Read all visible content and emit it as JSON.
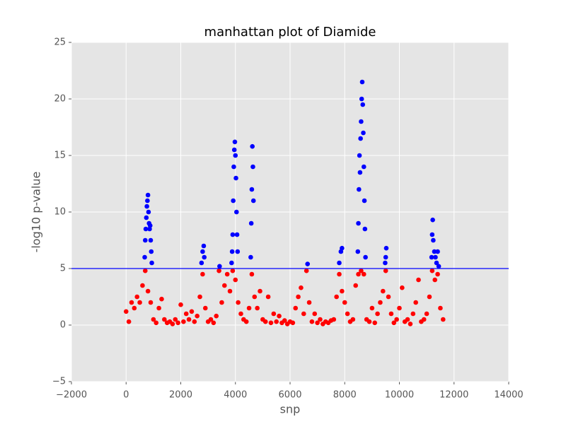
{
  "chart_data": {
    "type": "scatter",
    "title": "manhattan plot of Diamide",
    "x_label": "snp",
    "y_label": "-log10 p-value",
    "xlim": [
      -2000,
      14000
    ],
    "ylim": [
      -5,
      25
    ],
    "xticks": [
      {
        "value": -2000,
        "label": "−2000"
      },
      0,
      2000,
      4000,
      6000,
      8000,
      10000,
      12000,
      14000
    ],
    "yticks": [
      {
        "value": -5,
        "label": "−5"
      },
      0,
      5,
      10,
      15,
      20,
      25
    ],
    "grid": true,
    "threshold": {
      "value": 5,
      "color": "#0000ff"
    },
    "series": [
      {
        "color": "#ff0000",
        "x": [
          0,
          100,
          200,
          300,
          400,
          500,
          600,
          700,
          800,
          900,
          1000,
          1100,
          1200,
          1300,
          1400,
          1500,
          1600,
          1700,
          1800,
          1900,
          2000,
          2100,
          2200,
          2300,
          2400,
          2500,
          2600,
          2700,
          2800,
          2900,
          3000,
          3100,
          3200,
          3300,
          3400,
          3500,
          3600,
          3700,
          3800,
          3900,
          4000,
          4100,
          4200,
          4300,
          4400,
          4500,
          4600,
          4700,
          4800,
          4900,
          5000,
          5100,
          5200,
          5300,
          5400,
          5500,
          5600,
          5700,
          5800,
          5900,
          6000,
          6100,
          6200,
          6300,
          6400,
          6500,
          6600,
          6700,
          6800,
          6900,
          7000,
          7100,
          7200,
          7300,
          7400,
          7500,
          7600,
          7700,
          7800,
          7900,
          8000,
          8100,
          8200,
          8300,
          8400,
          8500,
          8600,
          8700,
          8800,
          8900,
          9000,
          9100,
          9200,
          9300,
          9400,
          9500,
          9600,
          9700,
          9800,
          9900,
          10000,
          10100,
          10200,
          10300,
          10400,
          10500,
          10600,
          10700,
          10800,
          10900,
          11000,
          11100,
          11200,
          11300,
          11400,
          11500,
          11600
        ],
        "values": [
          1.2,
          0.3,
          2.0,
          1.5,
          2.5,
          2.0,
          3.5,
          4.8,
          3.0,
          2.0,
          0.5,
          0.2,
          1.5,
          2.3,
          0.5,
          0.2,
          0.3,
          0.1,
          0.5,
          0.2,
          1.8,
          0.3,
          1.0,
          0.5,
          1.2,
          0.3,
          0.8,
          2.5,
          4.5,
          1.5,
          0.3,
          0.5,
          0.2,
          0.8,
          4.8,
          2.0,
          3.5,
          4.5,
          3.0,
          4.8,
          4.0,
          2.0,
          1.0,
          0.5,
          0.3,
          1.5,
          4.5,
          2.5,
          1.5,
          3.0,
          0.5,
          0.3,
          2.5,
          0.2,
          1.0,
          0.3,
          0.8,
          0.2,
          0.4,
          0.1,
          0.3,
          0.2,
          1.5,
          2.5,
          3.3,
          1.0,
          4.8,
          2.0,
          0.3,
          1.0,
          0.2,
          0.5,
          0.1,
          0.3,
          0.2,
          0.4,
          0.5,
          2.5,
          4.5,
          3.0,
          2.0,
          1.0,
          0.3,
          0.5,
          3.5,
          4.5,
          4.8,
          4.5,
          0.5,
          0.3,
          1.5,
          0.2,
          1.0,
          2.0,
          3.0,
          4.8,
          2.5,
          1.0,
          0.2,
          0.5,
          1.5,
          3.3,
          0.3,
          0.5,
          0.1,
          1.0,
          2.0,
          4.0,
          0.3,
          0.5,
          1.0,
          2.5,
          4.8,
          4.0,
          4.5,
          1.5,
          0.5
        ]
      },
      {
        "color": "#0000ff",
        "x": [
          680,
          700,
          720,
          740,
          760,
          780,
          800,
          820,
          840,
          860,
          880,
          900,
          920,
          940,
          2760,
          2800,
          2840,
          2860,
          3420,
          3860,
          3880,
          3900,
          3920,
          3940,
          3960,
          3980,
          4000,
          4020,
          4040,
          4060,
          4080,
          4560,
          4580,
          4600,
          4620,
          4640,
          4660,
          6640,
          7800,
          7860,
          7900,
          8480,
          8500,
          8520,
          8540,
          8560,
          8580,
          8600,
          8620,
          8640,
          8660,
          8680,
          8700,
          8720,
          8740,
          8760,
          9480,
          9500,
          9520,
          11180,
          11200,
          11220,
          11240,
          11280,
          11320,
          11360,
          11400,
          11440
        ],
        "values": [
          6.0,
          7.5,
          8.5,
          9.5,
          10.5,
          11.0,
          11.5,
          10.0,
          9.0,
          8.5,
          8.8,
          7.5,
          6.5,
          5.5,
          5.5,
          6.5,
          7.0,
          6.0,
          5.2,
          5.5,
          6.5,
          8.0,
          11.0,
          14.0,
          15.5,
          16.2,
          15.0,
          13.0,
          10.0,
          8.0,
          6.5,
          6.0,
          9.0,
          12.0,
          15.8,
          14.0,
          11.0,
          5.4,
          5.5,
          6.5,
          6.8,
          6.5,
          9.0,
          12.0,
          15.0,
          13.5,
          16.5,
          18.0,
          20.0,
          21.5,
          19.5,
          17.0,
          14.0,
          11.0,
          8.5,
          6.0,
          5.5,
          6.0,
          6.8,
          6.0,
          8.0,
          9.3,
          7.5,
          6.5,
          6.0,
          5.5,
          6.5,
          5.2
        ]
      }
    ]
  }
}
